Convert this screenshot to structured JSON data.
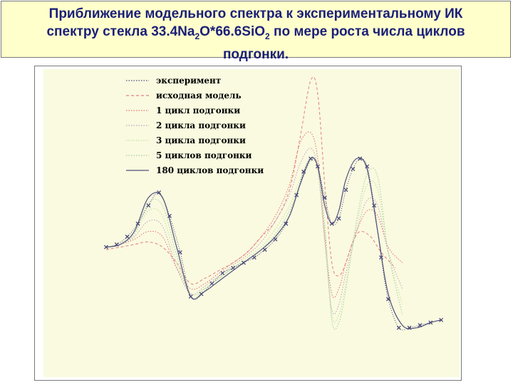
{
  "title": {
    "line1": "Приближение модельного спектра к экспериментальному ИК",
    "line2_prefix": "спектру стекла 33.4Na",
    "line2_sub1": "2",
    "line2_mid": "O*66.6SiO",
    "line2_sub2": "2",
    "line2_suffix": " по мере роста числа циклов",
    "line3": "подгонки."
  },
  "colors": {
    "title_text": "#1a1f78",
    "title_bg": "#ffffcc",
    "plot_bg": "#fafae0"
  },
  "chart_data": {
    "type": "line",
    "title": "",
    "xlabel": "",
    "ylabel": "",
    "xlim": [
      0,
      1.0
    ],
    "ylim": [
      0,
      1.0
    ],
    "grid": false,
    "legend_placement": "top-left",
    "series": [
      {
        "name": "эксперимент",
        "color": "#4a4a7a",
        "style": "markers",
        "x": [
          0.02,
          0.05,
          0.08,
          0.11,
          0.14,
          0.17,
          0.2,
          0.23,
          0.26,
          0.29,
          0.32,
          0.35,
          0.38,
          0.41,
          0.44,
          0.47,
          0.5,
          0.53,
          0.56,
          0.58,
          0.6,
          0.62,
          0.64,
          0.66,
          0.68,
          0.7,
          0.72,
          0.74,
          0.76,
          0.78,
          0.8,
          0.82,
          0.85,
          0.88,
          0.91,
          0.94,
          0.97
        ],
        "y": [
          0.36,
          0.37,
          0.4,
          0.45,
          0.52,
          0.57,
          0.48,
          0.34,
          0.17,
          0.18,
          0.22,
          0.26,
          0.28,
          0.3,
          0.32,
          0.35,
          0.39,
          0.45,
          0.56,
          0.65,
          0.7,
          0.67,
          0.55,
          0.45,
          0.47,
          0.58,
          0.66,
          0.7,
          0.67,
          0.52,
          0.32,
          0.16,
          0.05,
          0.05,
          0.06,
          0.07,
          0.08
        ]
      },
      {
        "name": "исходная модель",
        "color": "#e08080",
        "style": "dashed",
        "x": [
          0.02,
          0.06,
          0.1,
          0.14,
          0.18,
          0.22,
          0.26,
          0.3,
          0.34,
          0.38,
          0.42,
          0.46,
          0.5,
          0.54,
          0.57,
          0.6,
          0.62,
          0.64,
          0.66,
          0.68,
          0.7,
          0.72,
          0.74,
          0.77,
          0.8,
          0.84
        ],
        "y": [
          0.35,
          0.36,
          0.37,
          0.38,
          0.36,
          0.3,
          0.22,
          0.24,
          0.27,
          0.3,
          0.34,
          0.4,
          0.46,
          0.58,
          0.78,
          1.0,
          0.95,
          0.6,
          0.3,
          0.25,
          0.3,
          0.38,
          0.42,
          0.4,
          0.34,
          0.28
        ]
      },
      {
        "name": "1 цикл подгонки",
        "color": "#e07070",
        "style": "dotted",
        "x": [
          0.02,
          0.06,
          0.1,
          0.14,
          0.18,
          0.22,
          0.26,
          0.3,
          0.34,
          0.38,
          0.42,
          0.46,
          0.5,
          0.54,
          0.57,
          0.6,
          0.62,
          0.64,
          0.66,
          0.68,
          0.7,
          0.73,
          0.76,
          0.79,
          0.82,
          0.86
        ],
        "y": [
          0.36,
          0.37,
          0.39,
          0.42,
          0.4,
          0.28,
          0.2,
          0.22,
          0.26,
          0.3,
          0.34,
          0.4,
          0.48,
          0.6,
          0.76,
          0.8,
          0.7,
          0.4,
          0.18,
          0.2,
          0.3,
          0.42,
          0.5,
          0.48,
          0.36,
          0.3
        ]
      },
      {
        "name": "2 цикла подгонки",
        "color": "#c0a0c0",
        "style": "dotted",
        "x": [
          0.02,
          0.06,
          0.1,
          0.14,
          0.18,
          0.22,
          0.26,
          0.3,
          0.34,
          0.38,
          0.42,
          0.46,
          0.5,
          0.54,
          0.57,
          0.6,
          0.62,
          0.64,
          0.66,
          0.68,
          0.7,
          0.73,
          0.76,
          0.79,
          0.82,
          0.86
        ],
        "y": [
          0.36,
          0.37,
          0.4,
          0.46,
          0.44,
          0.28,
          0.18,
          0.21,
          0.25,
          0.29,
          0.33,
          0.38,
          0.46,
          0.56,
          0.68,
          0.74,
          0.66,
          0.38,
          0.12,
          0.14,
          0.26,
          0.42,
          0.54,
          0.52,
          0.34,
          0.2
        ]
      },
      {
        "name": "3 цикла подгонки",
        "color": "#c0e0a0",
        "style": "dotted",
        "x": [
          0.02,
          0.06,
          0.1,
          0.14,
          0.18,
          0.22,
          0.26,
          0.3,
          0.34,
          0.38,
          0.42,
          0.46,
          0.5,
          0.54,
          0.57,
          0.6,
          0.62,
          0.64,
          0.66,
          0.68,
          0.7,
          0.73,
          0.76,
          0.79,
          0.82,
          0.86
        ],
        "y": [
          0.36,
          0.37,
          0.41,
          0.5,
          0.48,
          0.3,
          0.18,
          0.2,
          0.24,
          0.28,
          0.32,
          0.36,
          0.43,
          0.52,
          0.62,
          0.7,
          0.66,
          0.42,
          0.1,
          0.1,
          0.22,
          0.44,
          0.6,
          0.58,
          0.34,
          0.14
        ]
      },
      {
        "name": "5 циклов подгонки",
        "color": "#a0d0a0",
        "style": "dotted",
        "x": [
          0.02,
          0.06,
          0.1,
          0.14,
          0.18,
          0.22,
          0.26,
          0.3,
          0.34,
          0.38,
          0.42,
          0.46,
          0.5,
          0.54,
          0.57,
          0.6,
          0.62,
          0.64,
          0.66,
          0.68,
          0.7,
          0.73,
          0.76,
          0.79,
          0.82,
          0.86
        ],
        "y": [
          0.36,
          0.37,
          0.41,
          0.53,
          0.52,
          0.33,
          0.17,
          0.2,
          0.24,
          0.28,
          0.31,
          0.35,
          0.41,
          0.5,
          0.6,
          0.69,
          0.67,
          0.45,
          0.08,
          0.07,
          0.2,
          0.46,
          0.64,
          0.63,
          0.34,
          0.1
        ]
      },
      {
        "name": "180 циклов подгонки",
        "color": "#50507a",
        "style": "solid",
        "x": [
          0.02,
          0.06,
          0.1,
          0.14,
          0.18,
          0.22,
          0.26,
          0.3,
          0.34,
          0.38,
          0.42,
          0.46,
          0.5,
          0.54,
          0.57,
          0.6,
          0.62,
          0.64,
          0.66,
          0.68,
          0.7,
          0.73,
          0.76,
          0.79,
          0.82,
          0.86,
          0.9,
          0.94,
          0.97
        ],
        "y": [
          0.36,
          0.37,
          0.42,
          0.55,
          0.55,
          0.36,
          0.17,
          0.19,
          0.23,
          0.27,
          0.31,
          0.35,
          0.4,
          0.48,
          0.6,
          0.7,
          0.67,
          0.52,
          0.45,
          0.5,
          0.62,
          0.7,
          0.66,
          0.42,
          0.18,
          0.06,
          0.05,
          0.07,
          0.08
        ]
      }
    ]
  }
}
